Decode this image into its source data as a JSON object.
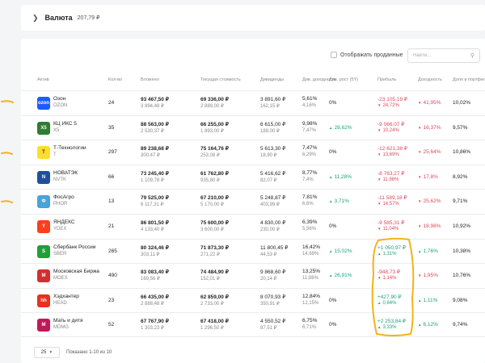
{
  "header": {
    "title": "Валюта",
    "amount": "207,79 ₽"
  },
  "controls": {
    "show_sold_label": "Отображать проданные",
    "search_placeholder": "Найти..."
  },
  "columns": [
    "Актив",
    "Кол-во",
    "Вложено",
    "Текущая стоимость",
    "Дивиденды",
    "Див. доходность",
    "Див. рост (5Y)",
    "Прибыль",
    "Доходность",
    "Доля в портфеле"
  ],
  "rows": [
    {
      "name": "Озон",
      "ticker": "OZON",
      "logo_text": "ozon",
      "logo_color": "#1a5cff",
      "qty": "24",
      "invested": "93 467,50 ₽",
      "invested_avg": "3 894,48 ₽",
      "current": "69 336,00 ₽",
      "current_unit": "2 889,00 ₽",
      "div": "3 891,60 ₽",
      "div_unit": "162,15 ₽",
      "yield": "5,61%",
      "yield2": "4,16%",
      "growth": "0%",
      "growth_sign": "none",
      "profit": "-23 105,19 ₽",
      "profit_pct": "24,72%",
      "profit_sign": "neg",
      "ret": "41,95%",
      "ret_sign": "neg",
      "share": "10,02%"
    },
    {
      "name": "КЦ ИКС 5",
      "ticker": "X5",
      "logo_text": "X5",
      "logo_color": "#2e7d32",
      "qty": "35",
      "invested": "88 563,00 ₽",
      "invested_avg": "2 530,37 ₽",
      "current": "66 255,00 ₽",
      "current_unit": "1 893,00 ₽",
      "div": "6 615,00 ₽",
      "div_unit": "189,00 ₽",
      "yield": "9,98%",
      "yield2": "7,47%",
      "growth": "28,62%",
      "growth_sign": "pos",
      "profit": "-9 066,07 ₽",
      "profit_pct": "10,24%",
      "profit_sign": "neg",
      "ret": "16,37%",
      "ret_sign": "neg",
      "share": "9,57%"
    },
    {
      "name": "Т-Технологии",
      "ticker": "T",
      "logo_text": "T",
      "logo_color": "#ffdd2d",
      "qty": "297",
      "invested": "89 238,68 ₽",
      "invested_avg": "300,47 ₽",
      "current": "75 164,76 ₽",
      "current_unit": "253,08 ₽",
      "div": "5 613,30 ₽",
      "div_unit": "18,90 ₽",
      "yield": "7,47%",
      "yield2": "6,29%",
      "growth": "0%",
      "growth_sign": "none",
      "profit": "-12 621,38 ₽",
      "profit_pct": "13,69%",
      "profit_sign": "neg",
      "ret": "25,64%",
      "ret_sign": "neg",
      "share": "10,86%"
    },
    {
      "name": "НОВАТЭК",
      "ticker": "NVTK",
      "logo_text": "N",
      "logo_color": "#1e4fa0",
      "qty": "66",
      "invested": "73 245,40 ₽",
      "invested_avg": "1 109,78 ₽",
      "current": "61 762,80 ₽",
      "current_unit": "935,80 ₽",
      "div": "5 416,62 ₽",
      "div_unit": "82,07 ₽",
      "yield": "8,77%",
      "yield2": "7,4%",
      "growth": "11,28%",
      "growth_sign": "pos",
      "profit": "-8 763,27 ₽",
      "profit_pct": "11,96%",
      "profit_sign": "neg",
      "ret": "17,8%",
      "ret_sign": "neg",
      "share": "8,92%"
    },
    {
      "name": "ФосАгро",
      "ticker": "PHOR",
      "logo_text": "Ф",
      "logo_color": "#4aa3d8",
      "qty": "13",
      "invested": "79 525,00 ₽",
      "invested_avg": "6 117,31 ₽",
      "current": "67 210,00 ₽",
      "current_unit": "5 170,00 ₽",
      "div": "5 248,87 ₽",
      "div_unit": "403,99 ₽",
      "yield": "7,81%",
      "yield2": "6,6%",
      "growth": "3,71%",
      "growth_sign": "pos",
      "profit": "-11 589,18 ₽",
      "profit_pct": "14,57%",
      "profit_sign": "neg",
      "ret": "25,62%",
      "ret_sign": "neg",
      "share": "9,71%"
    },
    {
      "name": "ЯНДЕКС",
      "ticker": "YDEX",
      "logo_text": "Y",
      "logo_color": "#fc3f1d",
      "qty": "21",
      "invested": "86 801,50 ₽",
      "invested_avg": "4 133,40 ₽",
      "current": "75 600,00 ₽",
      "current_unit": "3 600,00 ₽",
      "div": "4 830,00 ₽",
      "div_unit": "230,00 ₽",
      "yield": "6,39%",
      "yield2": "5,56%",
      "growth": "0%",
      "growth_sign": "none",
      "profit": "-9 585,31 ₽",
      "profit_pct": "11,04%",
      "profit_sign": "neg",
      "ret": "18,98%",
      "ret_sign": "neg",
      "share": "10,92%"
    },
    {
      "name": "Сбербанк России",
      "ticker": "SBER",
      "logo_text": "S",
      "logo_color": "#21a038",
      "qty": "265",
      "invested": "80 324,46 ₽",
      "invested_avg": "303,11 ₽",
      "current": "71 873,30 ₽",
      "current_unit": "271,22 ₽",
      "div": "11 800,45 ₽",
      "div_unit": "44,53 ₽",
      "yield": "16,42%",
      "yield2": "14,69%",
      "growth": "15,02%",
      "growth_sign": "pos",
      "profit": "+1 050,97 ₽",
      "profit_pct": "1,31%",
      "profit_sign": "pos",
      "ret": "1,76%",
      "ret_sign": "pos",
      "share": "10,38%"
    },
    {
      "name": "Московская Биржа",
      "ticker": "MOEX",
      "logo_text": "M",
      "logo_color": "#d32f2f",
      "qty": "490",
      "invested": "83 083,40 ₽",
      "invested_avg": "169,56 ₽",
      "current": "74 484,90 ₽",
      "current_unit": "152,01 ₽",
      "div": "9 868,60 ₽",
      "div_unit": "20,14 ₽",
      "yield": "13,25%",
      "yield2": "11,88%",
      "growth": "26,91%",
      "growth_sign": "pos",
      "profit": "-948,73 ₽",
      "profit_pct": "1,14%",
      "profit_sign": "neg",
      "ret": "1,95%",
      "ret_sign": "neg",
      "share": "10,76%"
    },
    {
      "name": "Хэдхантер",
      "ticker": "HEAD",
      "logo_text": "hh",
      "logo_color": "#e8311e",
      "qty": "23",
      "invested": "66 435,00 ₽",
      "invested_avg": "2 888,48 ₽",
      "current": "62 859,00 ₽",
      "current_unit": "2 733,00 ₽",
      "div": "8 070,93 ₽",
      "div_unit": "350,91 ₽",
      "yield": "12,84%",
      "yield2": "12,15%",
      "growth": "0%",
      "growth_sign": "none",
      "profit": "+427,90 ₽",
      "profit_pct": "0,64%",
      "profit_sign": "pos",
      "ret": "1,11%",
      "ret_sign": "pos",
      "share": "9,08%"
    },
    {
      "name": "Мать и дитя",
      "ticker": "MDMG",
      "logo_text": "М",
      "logo_color": "#c2185b",
      "qty": "52",
      "invested": "67 767,90 ₽",
      "invested_avg": "1 303,23 ₽",
      "current": "67 418,00 ₽",
      "current_unit": "1 296,50 ₽",
      "div": "4 550,52 ₽",
      "div_unit": "87,51 ₽",
      "yield": "6,75%",
      "yield2": "6,71%",
      "growth": "0%",
      "growth_sign": "none",
      "profit": "+2 253,84 ₽",
      "profit_pct": "3,33%",
      "profit_sign": "pos",
      "ret": "6,12%",
      "ret_sign": "pos",
      "share": "9,74%"
    }
  ],
  "footer": {
    "page_size": "25",
    "info": "Показано 1-10 из 10"
  },
  "annotation_color": "#f2b31b"
}
